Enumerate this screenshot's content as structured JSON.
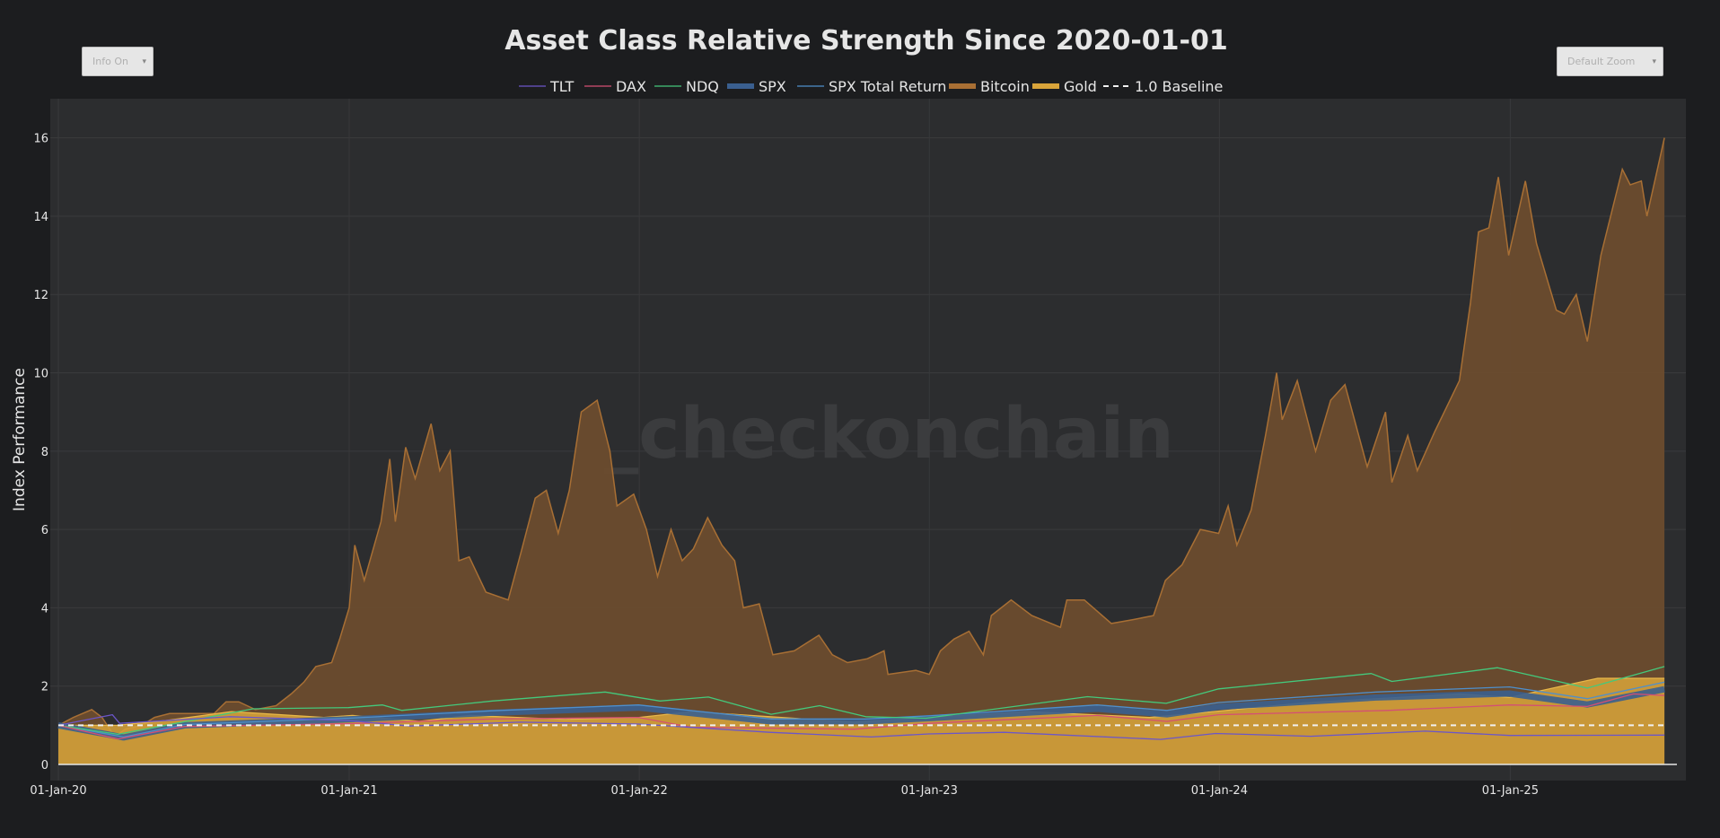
{
  "controls": {
    "info_label": "Info On",
    "info_arrow": "▾",
    "zoom_label": "Default Zoom",
    "zoom_arrow": "▾"
  },
  "watermark": "_checkonchain",
  "colors": {
    "background": "#1c1d1f",
    "plot_bg": "#2c2d2f",
    "text": "#e6e6e6",
    "TLT": "#6b56c9",
    "DAX": "#d44f74",
    "NDQ": "#44c97c",
    "SPX": "#3a5f8f",
    "SPX Total Return": "#4e8fcc",
    "Bitcoin": "#6b4c2e",
    "Bitcoin_line": "#a86f34",
    "Gold": "#d9a43a",
    "Baseline": "#f0f0f0"
  },
  "chart_data": {
    "type": "area",
    "title": "Asset Class Relative Strength Since 2020-01-01",
    "xlabel": "",
    "ylabel": "Index Performance",
    "ylim": [
      0,
      17
    ],
    "xlim": [
      "2020-01-01",
      "2025-07-15"
    ],
    "yticks": [
      0,
      2,
      4,
      6,
      8,
      10,
      12,
      14,
      16
    ],
    "xticks": [
      "2020-01-01",
      "2021-01-01",
      "2022-01-01",
      "2023-01-01",
      "2024-01-01",
      "2025-01-01"
    ],
    "xtick_labels": [
      "01-Jan-20",
      "01-Jan-21",
      "01-Jan-22",
      "01-Jan-23",
      "01-Jan-24",
      "01-Jan-25"
    ],
    "grid": true,
    "legend_position": "top-center",
    "legend": [
      "TLT",
      "DAX",
      "NDQ",
      "SPX",
      "SPX Total Return",
      "Bitcoin",
      "Gold",
      "1.0 Baseline"
    ],
    "series": [
      {
        "name": "Bitcoin",
        "style": "area",
        "points": [
          [
            "2020-01-01",
            1.0
          ],
          [
            "2020-01-20",
            1.2
          ],
          [
            "2020-02-12",
            1.4
          ],
          [
            "2020-02-25",
            1.2
          ],
          [
            "2020-03-12",
            0.7
          ],
          [
            "2020-03-25",
            0.9
          ],
          [
            "2020-04-15",
            1.0
          ],
          [
            "2020-05-01",
            1.2
          ],
          [
            "2020-05-20",
            1.3
          ],
          [
            "2020-06-15",
            1.3
          ],
          [
            "2020-07-15",
            1.3
          ],
          [
            "2020-07-30",
            1.6
          ],
          [
            "2020-08-15",
            1.6
          ],
          [
            "2020-09-05",
            1.4
          ],
          [
            "2020-10-01",
            1.5
          ],
          [
            "2020-10-20",
            1.8
          ],
          [
            "2020-11-05",
            2.1
          ],
          [
            "2020-11-20",
            2.5
          ],
          [
            "2020-12-10",
            2.6
          ],
          [
            "2020-12-20",
            3.2
          ],
          [
            "2021-01-01",
            4.0
          ],
          [
            "2021-01-08",
            5.6
          ],
          [
            "2021-01-20",
            4.7
          ],
          [
            "2021-02-10",
            6.2
          ],
          [
            "2021-02-21",
            7.8
          ],
          [
            "2021-02-28",
            6.2
          ],
          [
            "2021-03-13",
            8.1
          ],
          [
            "2021-03-25",
            7.3
          ],
          [
            "2021-04-14",
            8.7
          ],
          [
            "2021-04-25",
            7.5
          ],
          [
            "2021-05-08",
            8.0
          ],
          [
            "2021-05-19",
            5.2
          ],
          [
            "2021-06-01",
            5.3
          ],
          [
            "2021-06-22",
            4.4
          ],
          [
            "2021-07-20",
            4.2
          ],
          [
            "2021-08-05",
            5.4
          ],
          [
            "2021-08-23",
            6.8
          ],
          [
            "2021-09-06",
            7.0
          ],
          [
            "2021-09-21",
            5.9
          ],
          [
            "2021-10-05",
            7.0
          ],
          [
            "2021-10-20",
            9.0
          ],
          [
            "2021-11-09",
            9.3
          ],
          [
            "2021-11-25",
            8.0
          ],
          [
            "2021-12-04",
            6.6
          ],
          [
            "2021-12-25",
            6.9
          ],
          [
            "2022-01-10",
            6.0
          ],
          [
            "2022-01-24",
            4.8
          ],
          [
            "2022-02-10",
            6.0
          ],
          [
            "2022-02-24",
            5.2
          ],
          [
            "2022-03-10",
            5.5
          ],
          [
            "2022-03-28",
            6.3
          ],
          [
            "2022-04-15",
            5.6
          ],
          [
            "2022-05-01",
            5.2
          ],
          [
            "2022-05-12",
            4.0
          ],
          [
            "2022-06-01",
            4.1
          ],
          [
            "2022-06-18",
            2.8
          ],
          [
            "2022-07-15",
            2.9
          ],
          [
            "2022-08-15",
            3.3
          ],
          [
            "2022-09-01",
            2.8
          ],
          [
            "2022-09-20",
            2.6
          ],
          [
            "2022-10-15",
            2.7
          ],
          [
            "2022-11-05",
            2.9
          ],
          [
            "2022-11-10",
            2.3
          ],
          [
            "2022-12-15",
            2.4
          ],
          [
            "2023-01-01",
            2.3
          ],
          [
            "2023-01-15",
            2.9
          ],
          [
            "2023-02-01",
            3.2
          ],
          [
            "2023-02-20",
            3.4
          ],
          [
            "2023-03-10",
            2.8
          ],
          [
            "2023-03-20",
            3.8
          ],
          [
            "2023-04-14",
            4.2
          ],
          [
            "2023-05-10",
            3.8
          ],
          [
            "2023-06-15",
            3.5
          ],
          [
            "2023-06-23",
            4.2
          ],
          [
            "2023-07-15",
            4.2
          ],
          [
            "2023-08-18",
            3.6
          ],
          [
            "2023-09-15",
            3.7
          ],
          [
            "2023-10-10",
            3.8
          ],
          [
            "2023-10-25",
            4.7
          ],
          [
            "2023-11-15",
            5.1
          ],
          [
            "2023-12-08",
            6.0
          ],
          [
            "2023-12-31",
            5.9
          ],
          [
            "2024-01-12",
            6.6
          ],
          [
            "2024-01-23",
            5.6
          ],
          [
            "2024-02-10",
            6.5
          ],
          [
            "2024-02-28",
            8.4
          ],
          [
            "2024-03-13",
            10.0
          ],
          [
            "2024-03-20",
            8.8
          ],
          [
            "2024-04-08",
            9.8
          ],
          [
            "2024-05-01",
            8.0
          ],
          [
            "2024-05-20",
            9.3
          ],
          [
            "2024-06-07",
            9.7
          ],
          [
            "2024-07-05",
            7.6
          ],
          [
            "2024-07-28",
            9.0
          ],
          [
            "2024-08-05",
            7.2
          ],
          [
            "2024-08-25",
            8.4
          ],
          [
            "2024-09-06",
            7.5
          ],
          [
            "2024-09-28",
            8.5
          ],
          [
            "2024-10-29",
            9.8
          ],
          [
            "2024-11-12",
            11.8
          ],
          [
            "2024-11-22",
            13.6
          ],
          [
            "2024-12-05",
            13.7
          ],
          [
            "2024-12-17",
            15.0
          ],
          [
            "2024-12-30",
            13.0
          ],
          [
            "2025-01-20",
            14.9
          ],
          [
            "2025-02-03",
            13.3
          ],
          [
            "2025-02-28",
            11.6
          ],
          [
            "2025-03-10",
            11.5
          ],
          [
            "2025-03-25",
            12.0
          ],
          [
            "2025-04-08",
            10.8
          ],
          [
            "2025-04-25",
            13.0
          ],
          [
            "2025-05-22",
            15.2
          ],
          [
            "2025-06-01",
            14.8
          ],
          [
            "2025-06-15",
            14.9
          ],
          [
            "2025-06-22",
            14.0
          ],
          [
            "2025-07-14",
            16.0
          ]
        ]
      },
      {
        "name": "Gold",
        "style": "area",
        "points": [
          [
            "2020-01-01",
            1.0
          ],
          [
            "2020-03-15",
            1.0
          ],
          [
            "2020-05-15",
            1.12
          ],
          [
            "2020-08-06",
            1.35
          ],
          [
            "2020-11-30",
            1.2
          ],
          [
            "2021-01-05",
            1.25
          ],
          [
            "2021-03-30",
            1.1
          ],
          [
            "2021-06-01",
            1.25
          ],
          [
            "2021-09-30",
            1.15
          ],
          [
            "2022-01-01",
            1.2
          ],
          [
            "2022-03-08",
            1.35
          ],
          [
            "2022-09-28",
            1.08
          ],
          [
            "2022-12-31",
            1.2
          ],
          [
            "2023-05-04",
            1.35
          ],
          [
            "2023-10-05",
            1.2
          ],
          [
            "2023-12-31",
            1.36
          ],
          [
            "2024-04-15",
            1.57
          ],
          [
            "2024-10-30",
            1.8
          ],
          [
            "2024-12-31",
            1.71
          ],
          [
            "2025-04-21",
            2.2
          ],
          [
            "2025-07-14",
            2.2
          ]
        ]
      },
      {
        "name": "SPX",
        "style": "band",
        "points": [
          [
            "2020-01-01",
            1.0
          ],
          [
            "2020-03-23",
            0.69
          ],
          [
            "2020-06-08",
            1.0
          ],
          [
            "2020-12-31",
            1.15
          ],
          [
            "2021-06-30",
            1.32
          ],
          [
            "2021-12-31",
            1.45
          ],
          [
            "2022-06-16",
            1.1
          ],
          [
            "2022-10-12",
            1.1
          ],
          [
            "2022-12-31",
            1.18
          ],
          [
            "2023-07-31",
            1.42
          ],
          [
            "2023-10-27",
            1.28
          ],
          [
            "2023-12-31",
            1.47
          ],
          [
            "2024-07-16",
            1.71
          ],
          [
            "2024-12-31",
            1.81
          ],
          [
            "2025-04-08",
            1.53
          ],
          [
            "2025-07-14",
            1.92
          ]
        ]
      },
      {
        "name": "SPX Total Return",
        "style": "line",
        "points": [
          [
            "2020-01-01",
            1.0
          ],
          [
            "2020-03-23",
            0.7
          ],
          [
            "2020-06-08",
            1.02
          ],
          [
            "2020-12-31",
            1.18
          ],
          [
            "2021-06-30",
            1.37
          ],
          [
            "2021-12-31",
            1.52
          ],
          [
            "2022-06-16",
            1.16
          ],
          [
            "2022-10-12",
            1.16
          ],
          [
            "2022-12-31",
            1.24
          ],
          [
            "2023-07-31",
            1.52
          ],
          [
            "2023-10-27",
            1.38
          ],
          [
            "2023-12-31",
            1.58
          ],
          [
            "2024-07-16",
            1.85
          ],
          [
            "2024-12-31",
            1.98
          ],
          [
            "2025-04-08",
            1.68
          ],
          [
            "2025-07-14",
            2.1
          ]
        ]
      },
      {
        "name": "NDQ",
        "style": "line",
        "points": [
          [
            "2020-01-01",
            1.0
          ],
          [
            "2020-03-16",
            0.77
          ],
          [
            "2020-09-02",
            1.42
          ],
          [
            "2020-12-31",
            1.45
          ],
          [
            "2021-02-12",
            1.52
          ],
          [
            "2021-03-08",
            1.38
          ],
          [
            "2021-06-30",
            1.62
          ],
          [
            "2021-11-19",
            1.85
          ],
          [
            "2022-01-27",
            1.62
          ],
          [
            "2022-03-29",
            1.72
          ],
          [
            "2022-06-16",
            1.28
          ],
          [
            "2022-08-16",
            1.5
          ],
          [
            "2022-10-13",
            1.22
          ],
          [
            "2022-12-28",
            1.18
          ],
          [
            "2023-07-19",
            1.73
          ],
          [
            "2023-10-26",
            1.56
          ],
          [
            "2023-12-31",
            1.93
          ],
          [
            "2024-07-10",
            2.32
          ],
          [
            "2024-08-05",
            2.12
          ],
          [
            "2024-12-16",
            2.47
          ],
          [
            "2025-04-08",
            1.95
          ],
          [
            "2025-07-14",
            2.5
          ]
        ]
      },
      {
        "name": "DAX",
        "style": "line",
        "points": [
          [
            "2020-01-01",
            1.0
          ],
          [
            "2020-03-16",
            0.65
          ],
          [
            "2020-06-08",
            0.97
          ],
          [
            "2020-12-31",
            1.04
          ],
          [
            "2021-06-30",
            1.16
          ],
          [
            "2021-12-31",
            1.2
          ],
          [
            "2022-03-07",
            0.95
          ],
          [
            "2022-09-29",
            0.9
          ],
          [
            "2022-12-31",
            1.05
          ],
          [
            "2023-07-31",
            1.25
          ],
          [
            "2023-10-27",
            1.1
          ],
          [
            "2023-12-31",
            1.27
          ],
          [
            "2024-07-31",
            1.38
          ],
          [
            "2024-12-31",
            1.52
          ],
          [
            "2025-04-08",
            1.48
          ],
          [
            "2025-06-05",
            1.8
          ],
          [
            "2025-07-14",
            1.76
          ]
        ]
      },
      {
        "name": "TLT",
        "style": "line",
        "points": [
          [
            "2020-01-01",
            1.0
          ],
          [
            "2020-03-09",
            1.27
          ],
          [
            "2020-03-18",
            1.05
          ],
          [
            "2020-08-04",
            1.22
          ],
          [
            "2020-12-31",
            1.12
          ],
          [
            "2021-03-18",
            0.98
          ],
          [
            "2021-08-04",
            1.08
          ],
          [
            "2021-12-31",
            1.03
          ],
          [
            "2022-06-14",
            0.82
          ],
          [
            "2022-10-20",
            0.7
          ],
          [
            "2022-12-31",
            0.78
          ],
          [
            "2023-04-05",
            0.82
          ],
          [
            "2023-10-19",
            0.64
          ],
          [
            "2023-12-27",
            0.79
          ],
          [
            "2024-04-25",
            0.72
          ],
          [
            "2024-09-16",
            0.85
          ],
          [
            "2024-12-31",
            0.74
          ],
          [
            "2025-07-14",
            0.75
          ]
        ]
      },
      {
        "name": "1.0 Baseline",
        "style": "dashed",
        "points": [
          [
            "2020-01-01",
            1.0
          ],
          [
            "2025-07-14",
            1.0
          ]
        ]
      }
    ]
  }
}
